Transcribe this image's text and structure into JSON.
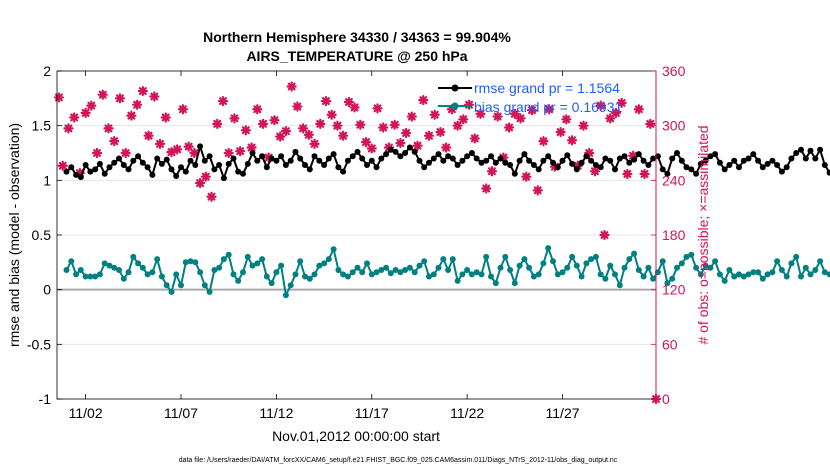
{
  "chart_data": {
    "type": "line",
    "title": "Northern Hemisphere 34330 / 34363 = 99.904%",
    "subtitle": "AIRS_TEMPERATURE @ 250 hPa",
    "xlabel": "Nov.01,2012 00:00:00 start",
    "ylabel": "rmse and bias (model - observation)",
    "y2label": "# of obs: o=possible; ×=assimilated",
    "footer": "data file: /Users/raeder/DAI/ATM_forcXX/CAM6_setup/f.e21.FHIST_BGC.f09_025.CAM6assim.011/Diags_NTrS_2012-11/obs_diag_output.nc",
    "x_tick_labels": [
      "11/02",
      "11/07",
      "11/12",
      "11/17",
      "11/22",
      "11/27"
    ],
    "x_tick_days": [
      2,
      7,
      12,
      17,
      22,
      27
    ],
    "xlim": [
      0.5,
      31.9
    ],
    "ylim": [
      -1,
      2
    ],
    "y_ticks": [
      -1,
      -0.5,
      0,
      0.5,
      1,
      1.5,
      2
    ],
    "y2lim": [
      0,
      360
    ],
    "y2_ticks": [
      0,
      60,
      120,
      180,
      240,
      300,
      360
    ],
    "legend": {
      "location": "top-right",
      "entries": [
        "rmse grand pr = 1.1564",
        "bias grand pr = 0.16931"
      ]
    },
    "colors": {
      "rmse": "#000000",
      "bias": "#008080",
      "obs": "#d4145a",
      "legend_text": "#1f5fff",
      "zero_line": "#aaaaaa"
    },
    "time_step_days": 0.25,
    "series": [
      {
        "name": "rmse",
        "values": [
          1.08,
          1.12,
          1.05,
          1.03,
          1.14,
          1.08,
          1.1,
          1.15,
          1.06,
          1.12,
          1.16,
          1.2,
          1.14,
          1.1,
          1.18,
          1.22,
          1.16,
          1.12,
          1.05,
          1.2,
          1.15,
          1.19,
          1.1,
          1.04,
          1.12,
          1.08,
          1.18,
          1.14,
          1.31,
          1.18,
          1.22,
          1.1,
          1.14,
          1.02,
          1.15,
          1.2,
          1.08,
          1.06,
          1.15,
          1.25,
          1.18,
          1.22,
          1.12,
          1.2,
          1.18,
          1.22,
          1.14,
          1.18,
          1.26,
          1.2,
          1.14,
          1.1,
          1.22,
          1.18,
          1.14,
          1.2,
          1.24,
          1.12,
          1.08,
          1.18,
          1.22,
          1.26,
          1.2,
          1.14,
          1.18,
          1.12,
          1.2,
          1.24,
          1.28,
          1.26,
          1.22,
          1.25,
          1.3,
          1.26,
          1.18,
          1.12,
          1.16,
          1.2,
          1.24,
          1.18,
          1.22,
          1.2,
          1.14,
          1.18,
          1.22,
          1.25,
          1.2,
          1.16,
          1.18,
          1.22,
          1.16,
          1.2,
          1.16,
          1.14,
          1.06,
          1.18,
          1.24,
          1.18,
          1.14,
          1.1,
          1.18,
          1.22,
          1.16,
          1.12,
          1.18,
          1.23,
          1.15,
          1.1,
          1.16,
          1.22,
          1.18,
          1.14,
          1.12,
          1.2,
          1.18,
          1.1,
          1.2,
          1.22,
          1.16,
          1.19,
          1.24,
          1.18,
          1.14,
          1.2,
          1.22,
          1.1,
          1.06,
          1.2,
          1.25,
          1.18,
          1.12,
          1.1,
          1.06,
          1.15,
          1.18,
          1.22,
          1.24,
          1.16,
          1.1,
          1.14,
          1.18,
          1.12,
          1.18,
          1.2,
          1.24,
          1.18,
          1.12,
          1.15,
          1.18,
          1.14,
          1.08,
          1.12,
          1.2,
          1.25,
          1.28,
          1.2,
          1.27,
          1.2,
          1.28,
          1.14,
          1.07,
          1.16,
          1.3,
          1.24,
          1.2,
          1.12,
          1.08,
          1.16,
          1.2,
          1.28,
          1.18,
          1.12,
          1.08,
          1.2,
          1.16,
          1.06,
          1.1,
          1.16,
          1.04,
          1.12,
          1.2,
          1.06,
          1.07,
          1.14,
          1.18,
          1.24,
          1.18,
          1.08,
          1.12,
          1.1,
          1.12,
          1.08,
          1.16,
          1.24,
          1.26,
          1.2,
          1.14,
          1.2,
          1.35,
          1.24,
          1.18,
          1.14,
          1.22,
          1.18,
          1.14,
          1.22,
          1.2,
          1.16,
          1.06,
          1.12,
          1.04,
          1.1,
          1.18,
          1.16,
          1.22
        ]
      },
      {
        "name": "bias",
        "values": [
          0.18,
          0.26,
          0.14,
          0.18,
          0.12,
          0.12,
          0.12,
          0.14,
          0.24,
          0.22,
          0.2,
          0.18,
          0.1,
          0.16,
          0.3,
          0.24,
          0.2,
          0.14,
          0.16,
          0.28,
          0.12,
          0.04,
          -0.02,
          0.14,
          0.04,
          0.25,
          0.26,
          0.25,
          0.16,
          0.04,
          -0.02,
          0.18,
          0.2,
          0.28,
          0.32,
          0.14,
          0.08,
          0.16,
          0.3,
          0.22,
          0.24,
          0.28,
          0.12,
          0.06,
          0.16,
          0.22,
          -0.05,
          0.04,
          0.14,
          0.26,
          0.12,
          0.1,
          0.14,
          0.22,
          0.24,
          0.28,
          0.37,
          0.18,
          0.14,
          0.12,
          0.16,
          0.2,
          0.16,
          0.24,
          0.14,
          0.16,
          0.18,
          0.2,
          0.15,
          0.18,
          0.16,
          0.18,
          0.2,
          0.16,
          0.22,
          0.26,
          0.12,
          0.14,
          0.2,
          0.28,
          0.18,
          0.28,
          0.08,
          0.14,
          0.18,
          0.14,
          0.16,
          0.14,
          0.3,
          0.12,
          0.06,
          0.2,
          0.3,
          0.18,
          0.06,
          0.22,
          0.28,
          0.2,
          0.12,
          0.14,
          0.24,
          0.38,
          0.26,
          0.14,
          0.16,
          0.2,
          0.3,
          0.22,
          0.12,
          0.24,
          0.28,
          0.3,
          0.14,
          0.1,
          0.22,
          0.14,
          0.04,
          0.2,
          0.28,
          0.33,
          0.18,
          0.12,
          0.2,
          0.1,
          0.16,
          0.26,
          0.06,
          0.1,
          0.2,
          0.24,
          0.3,
          0.32,
          0.2,
          0.14,
          0.22,
          0.2,
          0.26,
          0.14,
          0.08,
          0.18,
          0.12,
          0.14,
          0.12,
          0.14,
          0.16,
          0.16,
          0.1,
          0.14,
          0.16,
          0.26,
          0.18,
          0.12,
          0.24,
          0.3,
          0.12,
          0.2,
          0.14,
          0.18,
          0.26,
          0.16,
          0.14,
          0.16,
          0.08,
          0.14,
          0.22,
          0.32,
          0.26,
          0.2,
          0.18,
          0.12,
          0.1,
          0.14,
          0.2,
          0.12,
          0.1,
          0.22,
          0.16,
          0.2,
          0.24,
          0.18,
          0.18,
          0.22,
          0.26,
          0.2,
          0.3,
          0.14,
          0.1,
          0.16,
          0.26,
          0.3,
          0.22,
          0.16,
          0.06,
          0.02,
          0.16,
          0.12,
          0.18,
          0.3,
          0.22,
          0.26,
          0.3,
          0.16,
          0.12,
          0.24,
          0.2,
          0.1,
          0.16,
          0.14,
          0.12,
          0.04,
          -0.05,
          0.12,
          0.16,
          0.2,
          0.22
        ]
      }
    ],
    "obs_counts": [
      {
        "x": 0.6,
        "y": 331
      },
      {
        "x": 0.8,
        "y": 256
      },
      {
        "x": 1.1,
        "y": 297
      },
      {
        "x": 1.4,
        "y": 309
      },
      {
        "x": 1.7,
        "y": 248
      },
      {
        "x": 2.0,
        "y": 314
      },
      {
        "x": 2.3,
        "y": 322
      },
      {
        "x": 2.6,
        "y": 270
      },
      {
        "x": 2.9,
        "y": 334
      },
      {
        "x": 3.2,
        "y": 297
      },
      {
        "x": 3.5,
        "y": 283
      },
      {
        "x": 3.8,
        "y": 330
      },
      {
        "x": 4.1,
        "y": 270
      },
      {
        "x": 4.4,
        "y": 311
      },
      {
        "x": 4.7,
        "y": 323
      },
      {
        "x": 5.0,
        "y": 338
      },
      {
        "x": 5.3,
        "y": 289
      },
      {
        "x": 5.6,
        "y": 332
      },
      {
        "x": 5.9,
        "y": 280
      },
      {
        "x": 6.2,
        "y": 309
      },
      {
        "x": 6.5,
        "y": 271
      },
      {
        "x": 6.8,
        "y": 274
      },
      {
        "x": 7.1,
        "y": 318
      },
      {
        "x": 7.4,
        "y": 277
      },
      {
        "x": 7.7,
        "y": 270
      },
      {
        "x": 8.0,
        "y": 237
      },
      {
        "x": 8.3,
        "y": 244
      },
      {
        "x": 8.6,
        "y": 222
      },
      {
        "x": 8.9,
        "y": 302
      },
      {
        "x": 9.2,
        "y": 327
      },
      {
        "x": 9.5,
        "y": 270
      },
      {
        "x": 9.8,
        "y": 308
      },
      {
        "x": 10.1,
        "y": 272
      },
      {
        "x": 10.4,
        "y": 295
      },
      {
        "x": 10.7,
        "y": 276
      },
      {
        "x": 11.0,
        "y": 318
      },
      {
        "x": 11.3,
        "y": 302
      },
      {
        "x": 11.6,
        "y": 265
      },
      {
        "x": 11.9,
        "y": 306
      },
      {
        "x": 12.2,
        "y": 288
      },
      {
        "x": 12.5,
        "y": 294
      },
      {
        "x": 12.8,
        "y": 343
      },
      {
        "x": 13.1,
        "y": 321
      },
      {
        "x": 13.4,
        "y": 297
      },
      {
        "x": 13.7,
        "y": 290
      },
      {
        "x": 14.0,
        "y": 280
      },
      {
        "x": 14.3,
        "y": 302
      },
      {
        "x": 14.6,
        "y": 327
      },
      {
        "x": 14.9,
        "y": 312
      },
      {
        "x": 15.2,
        "y": 300
      },
      {
        "x": 15.5,
        "y": 289
      },
      {
        "x": 15.8,
        "y": 326
      },
      {
        "x": 16.1,
        "y": 320
      },
      {
        "x": 16.4,
        "y": 301
      },
      {
        "x": 16.7,
        "y": 282
      },
      {
        "x": 17.0,
        "y": 275
      },
      {
        "x": 17.3,
        "y": 319
      },
      {
        "x": 17.6,
        "y": 298
      },
      {
        "x": 17.9,
        "y": 276
      },
      {
        "x": 18.2,
        "y": 301
      },
      {
        "x": 18.5,
        "y": 281
      },
      {
        "x": 18.8,
        "y": 292
      },
      {
        "x": 19.1,
        "y": 310
      },
      {
        "x": 19.4,
        "y": 278
      },
      {
        "x": 19.7,
        "y": 328
      },
      {
        "x": 20.0,
        "y": 289
      },
      {
        "x": 20.3,
        "y": 312
      },
      {
        "x": 20.6,
        "y": 293
      },
      {
        "x": 20.9,
        "y": 276
      },
      {
        "x": 21.2,
        "y": 318
      },
      {
        "x": 21.5,
        "y": 300
      },
      {
        "x": 21.8,
        "y": 307
      },
      {
        "x": 22.1,
        "y": 323
      },
      {
        "x": 22.4,
        "y": 286
      },
      {
        "x": 22.7,
        "y": 313
      },
      {
        "x": 23.0,
        "y": 231
      },
      {
        "x": 23.3,
        "y": 250
      },
      {
        "x": 23.6,
        "y": 310
      },
      {
        "x": 23.9,
        "y": 265
      },
      {
        "x": 24.2,
        "y": 298
      },
      {
        "x": 24.5,
        "y": 313
      },
      {
        "x": 24.8,
        "y": 308
      },
      {
        "x": 25.1,
        "y": 244
      },
      {
        "x": 25.4,
        "y": 317
      },
      {
        "x": 25.7,
        "y": 229
      },
      {
        "x": 26.0,
        "y": 283
      },
      {
        "x": 26.3,
        "y": 318
      },
      {
        "x": 26.6,
        "y": 255
      },
      {
        "x": 26.9,
        "y": 293
      },
      {
        "x": 27.2,
        "y": 307
      },
      {
        "x": 27.5,
        "y": 284
      },
      {
        "x": 27.8,
        "y": 256
      },
      {
        "x": 28.1,
        "y": 300
      },
      {
        "x": 28.4,
        "y": 270
      },
      {
        "x": 28.7,
        "y": 250
      },
      {
        "x": 29.0,
        "y": 322
      },
      {
        "x": 29.2,
        "y": 180
      },
      {
        "x": 29.5,
        "y": 308
      },
      {
        "x": 29.8,
        "y": 314
      },
      {
        "x": 30.1,
        "y": 325
      },
      {
        "x": 30.4,
        "y": 247
      },
      {
        "x": 30.7,
        "y": 267
      },
      {
        "x": 31.0,
        "y": 318
      },
      {
        "x": 31.3,
        "y": 247
      },
      {
        "x": 31.6,
        "y": 302
      },
      {
        "x": 31.9,
        "y": 0
      }
    ]
  }
}
